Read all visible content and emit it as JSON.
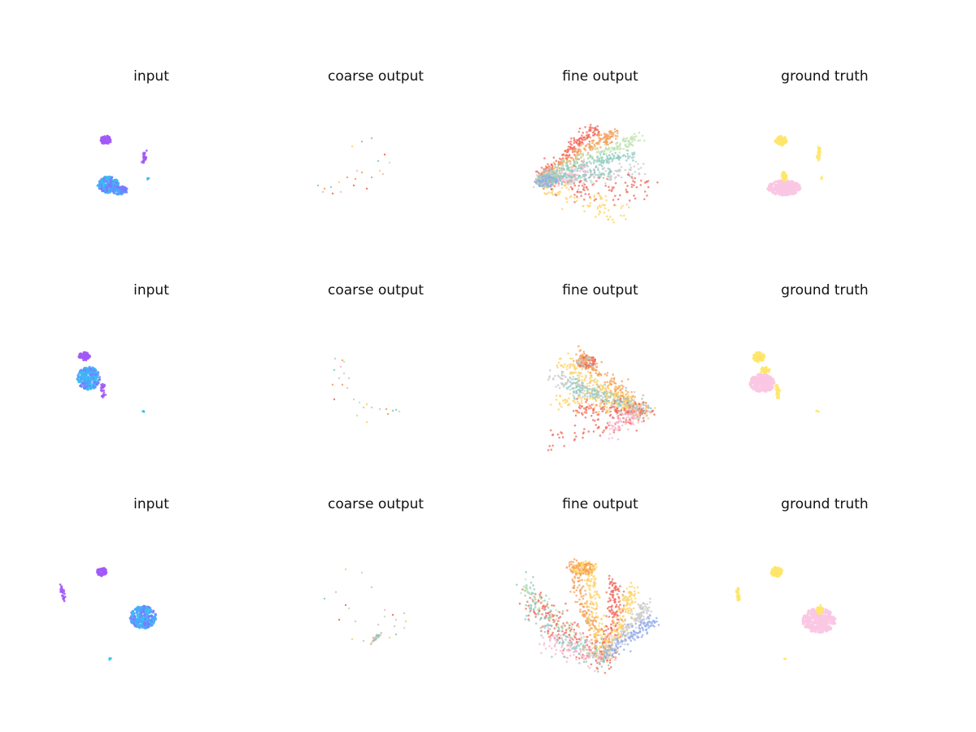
{
  "figure": {
    "grid": {
      "rows": 3,
      "cols": 4
    },
    "axes_visible": false
  },
  "chart_data": {
    "type": "scatter",
    "column_titles": [
      "input",
      "coarse output",
      "fine output",
      "ground truth"
    ],
    "palettes": {
      "input": [
        "#a259f7",
        "#7b78ff",
        "#4da6ff",
        "#34c0f0"
      ],
      "coarse": [
        "#f26b5e",
        "#f4a259",
        "#ffd166",
        "#8cc9bd",
        "#c9c9c9",
        "#f5b7d0",
        "#bfe3b0"
      ],
      "fine": [
        "#f26b5e",
        "#f4a259",
        "#ffd166",
        "#8cc9bd",
        "#c9c9c9",
        "#f5b7d0",
        "#bfe3b0",
        "#8fa8e8"
      ],
      "ground_truth": [
        "#ffe66b",
        "#fac7e3"
      ]
    },
    "rows": [
      {
        "titles": [
          "input",
          "coarse output",
          "fine output",
          "ground truth"
        ]
      },
      {
        "titles": [
          "input",
          "coarse output",
          "fine output",
          "ground truth"
        ]
      },
      {
        "titles": [
          "input",
          "coarse output",
          "fine output",
          "ground truth"
        ]
      }
    ]
  }
}
